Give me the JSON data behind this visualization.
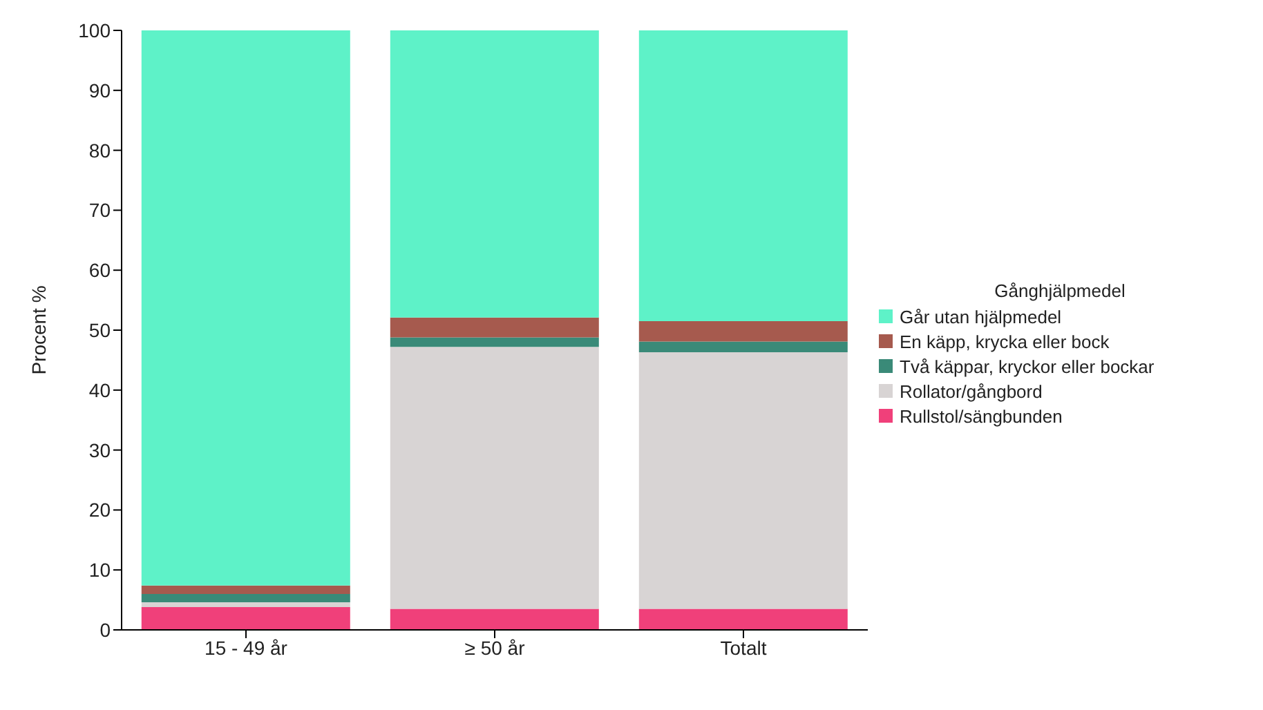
{
  "chart_data": {
    "type": "bar",
    "stacked": true,
    "ylabel": "Procent %",
    "legend_title": "Gånghjälpmedel",
    "categories": [
      "15 - 49 år",
      "≥ 50 år",
      "Totalt"
    ],
    "series": [
      {
        "name": "Rullstol/sängbunden",
        "color": "#f0407a",
        "values": [
          3.8,
          3.5,
          3.5
        ]
      },
      {
        "name": "Rollator/gångbord",
        "color": "#d8d4d4",
        "values": [
          0.8,
          43.7,
          42.8
        ]
      },
      {
        "name": "Två käppar, kryckor eller bockar",
        "color": "#3a8a78",
        "values": [
          1.4,
          1.6,
          1.8
        ]
      },
      {
        "name": "En käpp, krycka eller bock",
        "color": "#a65a4e",
        "values": [
          1.4,
          3.3,
          3.4
        ]
      },
      {
        "name": "Går utan hjälpmedel",
        "color": "#5ef2c8",
        "values": [
          92.6,
          47.9,
          48.5
        ]
      }
    ],
    "ylim": [
      0,
      100
    ],
    "yticks": [
      0,
      10,
      20,
      30,
      40,
      50,
      60,
      70,
      80,
      90,
      100
    ],
    "grid": false,
    "legend": "right"
  }
}
